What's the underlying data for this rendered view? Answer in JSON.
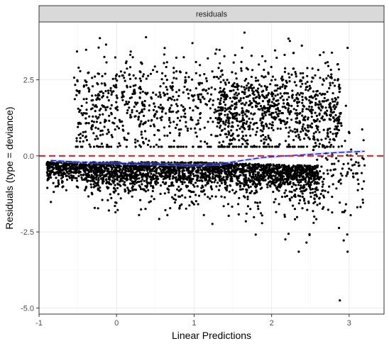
{
  "chart_data": {
    "type": "scatter",
    "title": "",
    "facet_label": "residuals",
    "xlabel": "Linear Predictions",
    "ylabel": "Residuals (type = deviance)",
    "xlim": [
      -1.0,
      3.45
    ],
    "ylim": [
      -5.2,
      4.4
    ],
    "x_ticks": [
      -1,
      0,
      1,
      2,
      3
    ],
    "x_tick_labels": [
      "-1",
      "0",
      "1",
      "2",
      "3"
    ],
    "y_ticks": [
      -5.0,
      -2.5,
      0.0,
      2.5
    ],
    "y_tick_labels": [
      "-5.0",
      "-2.5",
      "0.0",
      "2.5"
    ],
    "grid": true,
    "reference_line": {
      "y": 0.0,
      "style": "dashed",
      "color": "#e31a1c"
    },
    "smooth_curve": {
      "color": "#0000ff",
      "points": [
        {
          "x": -0.85,
          "y": -0.15
        },
        {
          "x": -0.5,
          "y": -0.2
        },
        {
          "x": 0.0,
          "y": -0.24
        },
        {
          "x": 0.5,
          "y": -0.27
        },
        {
          "x": 1.0,
          "y": -0.31
        },
        {
          "x": 1.3,
          "y": -0.28
        },
        {
          "x": 1.6,
          "y": -0.16
        },
        {
          "x": 1.9,
          "y": -0.05
        },
        {
          "x": 2.2,
          "y": 0.0
        },
        {
          "x": 2.5,
          "y": 0.05
        },
        {
          "x": 2.8,
          "y": 0.1
        },
        {
          "x": 3.0,
          "y": 0.13
        },
        {
          "x": 3.2,
          "y": 0.15
        }
      ]
    },
    "point_clusters": [
      {
        "name": "band",
        "x_range": [
          -0.9,
          2.6
        ],
        "y_center": -0.5,
        "y_spread": 0.35,
        "count": 2200
      },
      {
        "name": "lower-tail",
        "x_range": [
          -0.4,
          2.7
        ],
        "y_center": -1.1,
        "y_spread": 0.55,
        "count": 450
      },
      {
        "name": "upper-left",
        "x_range": [
          -0.55,
          1.4
        ],
        "y_center": 1.6,
        "y_spread": 0.85,
        "count": 650
      },
      {
        "name": "upper-right",
        "x_range": [
          1.3,
          2.9
        ],
        "y_center": 1.5,
        "y_spread": 0.75,
        "count": 900
      },
      {
        "name": "right-tail",
        "x_range": [
          2.5,
          3.2
        ],
        "y_center": -0.5,
        "y_spread": 0.9,
        "count": 120
      }
    ],
    "outliers": [
      {
        "x": 2.88,
        "y": -4.75
      },
      {
        "x": 2.98,
        "y": -3.15
      },
      {
        "x": 2.93,
        "y": -2.78
      },
      {
        "x": 3.02,
        "y": -1.95
      },
      {
        "x": 2.35,
        "y": -3.15
      },
      {
        "x": 2.45,
        "y": -2.85
      },
      {
        "x": 1.65,
        "y": 4.05
      },
      {
        "x": 0.38,
        "y": 3.9
      },
      {
        "x": 2.98,
        "y": 3.55
      }
    ]
  }
}
